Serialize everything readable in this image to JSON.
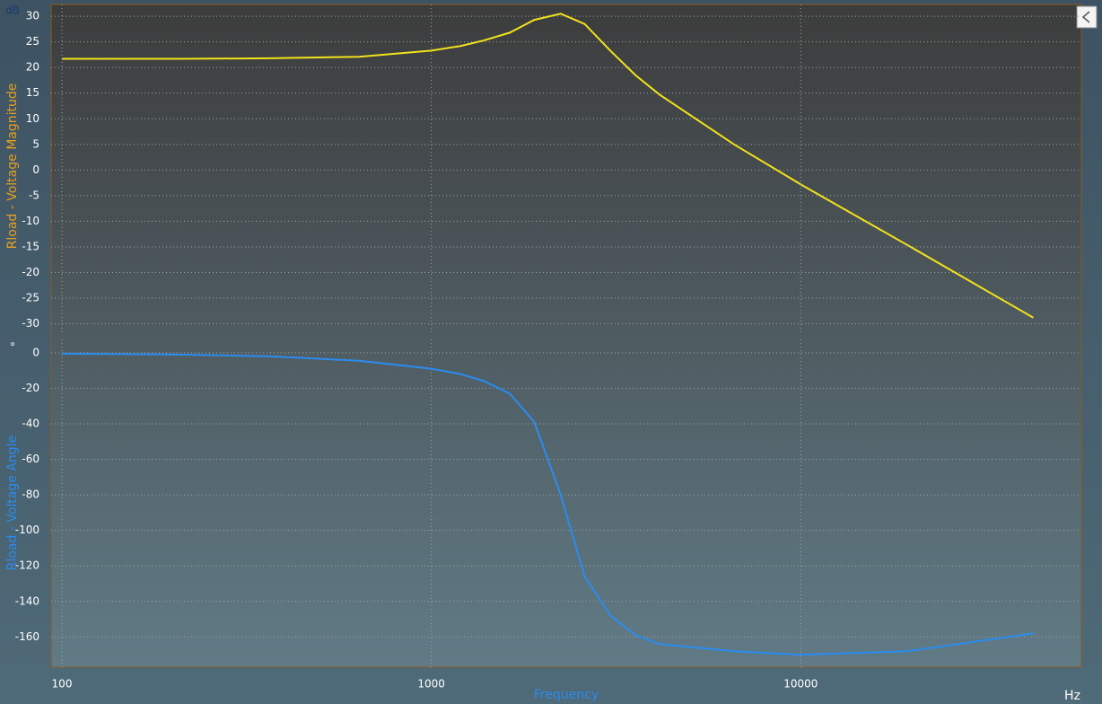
{
  "chart_data": [
    {
      "type": "line",
      "y_label": "Rload - Voltage Magnitude",
      "y_unit": "dB",
      "label_color": "#e8a020",
      "log_x": true,
      "grid": true,
      "x": [
        100,
        208,
        364,
        637,
        1000,
        1200,
        1390,
        1630,
        1900,
        2240,
        2600,
        3060,
        3570,
        4150,
        6600,
        10000,
        19400,
        42600
      ],
      "series": [
        {
          "name": "Rload - Voltage Magnitude",
          "color": "#f2e21c",
          "values": [
            21.7,
            21.7,
            21.8,
            22.1,
            23.3,
            24.2,
            25.3,
            26.8,
            29.3,
            30.5,
            28.5,
            23.2,
            18.5,
            14.7,
            5.0,
            -2.8,
            -14.6,
            -28.8
          ]
        }
      ],
      "xlim": [
        93.5,
        57500
      ],
      "ylim": [
        -32,
        32.3
      ],
      "yticks": [
        30,
        25,
        20,
        15,
        10,
        5,
        0,
        -5,
        -10,
        -15,
        -20,
        -25,
        -30
      ]
    },
    {
      "type": "line",
      "y_label": "Rload - Voltage Angle",
      "y_unit": "°",
      "label_color": "#2a8cf0",
      "x_label": "Frequency",
      "x_unit": "Hz",
      "log_x": true,
      "grid": true,
      "x": [
        100,
        208,
        364,
        637,
        1000,
        1200,
        1390,
        1630,
        1900,
        2240,
        2600,
        3060,
        3570,
        4150,
        6600,
        10000,
        19400,
        42600
      ],
      "series": [
        {
          "name": "Rload - Voltage Angle",
          "color": "#2a8cf0",
          "values": [
            -0.5,
            -1,
            -2,
            -4.5,
            -9,
            -12,
            -16,
            -23,
            -39,
            -80,
            -126,
            -148,
            -159,
            -164,
            -168,
            -170,
            -168,
            -158
          ]
        }
      ],
      "xlim": [
        93.5,
        57500
      ],
      "ylim": [
        -177,
        7.5
      ],
      "xticks": [
        100,
        1000,
        10000
      ],
      "yticks": [
        0,
        -20,
        -40,
        -60,
        -80,
        -100,
        -120,
        -140,
        -160
      ]
    }
  ]
}
